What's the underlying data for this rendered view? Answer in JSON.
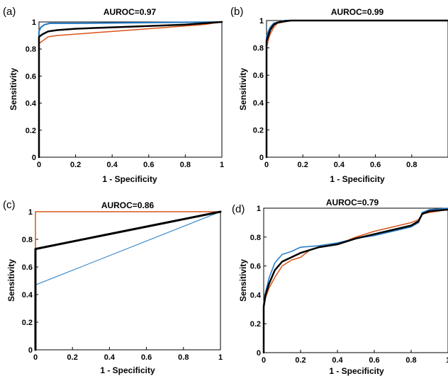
{
  "colors": {
    "blue": "#1f77c4",
    "orange": "#d9541a",
    "black": "#000000"
  },
  "chart_data": [
    {
      "label": "(a)",
      "type": "line",
      "title": "AUROC=0.97",
      "xlabel": "1 - Specificity",
      "ylabel": "Sensitivity",
      "xlim": [
        0,
        1
      ],
      "ylim": [
        0,
        1
      ],
      "xticks": [
        "0",
        "0.2",
        "0.4",
        "0.6",
        "0.8",
        "1"
      ],
      "yticks": [
        "0",
        "0.2",
        "0.4",
        "0.6",
        "0.8",
        "1"
      ],
      "grid": false,
      "series": [
        {
          "color": "orange",
          "width": 1.5,
          "points": [
            [
              0,
              0
            ],
            [
              0,
              0.84
            ],
            [
              0.02,
              0.86
            ],
            [
              0.05,
              0.89
            ],
            [
              0.1,
              0.9
            ],
            [
              0.3,
              0.92
            ],
            [
              0.5,
              0.94
            ],
            [
              0.7,
              0.96
            ],
            [
              0.9,
              0.98
            ],
            [
              1,
              1
            ]
          ]
        },
        {
          "color": "blue",
          "width": 2,
          "points": [
            [
              0,
              0
            ],
            [
              0,
              0.93
            ],
            [
              0.01,
              0.96
            ],
            [
              0.03,
              0.98
            ],
            [
              0.06,
              0.99
            ],
            [
              0.2,
              0.99
            ],
            [
              1,
              1
            ]
          ]
        },
        {
          "color": "black",
          "width": 2.5,
          "points": [
            [
              0,
              0
            ],
            [
              0,
              0.89
            ],
            [
              0.02,
              0.91
            ],
            [
              0.05,
              0.93
            ],
            [
              0.1,
              0.94
            ],
            [
              0.2,
              0.95
            ],
            [
              0.4,
              0.96
            ],
            [
              0.6,
              0.97
            ],
            [
              0.8,
              0.98
            ],
            [
              1,
              1
            ]
          ]
        }
      ]
    },
    {
      "label": "(b)",
      "type": "line",
      "title": "AUROC=0.99",
      "xlabel": "1 - Specificity",
      "ylabel": "Sensitivity",
      "xlim": [
        0,
        1
      ],
      "ylim": [
        0,
        1
      ],
      "xticks": [
        "0",
        "0.2",
        "0.4",
        "0.6",
        "0.8"
      ],
      "yticks": [
        "0",
        "0.2",
        "0.4",
        "0.6",
        "0.8",
        "1"
      ],
      "grid": false,
      "series": [
        {
          "color": "orange",
          "width": 1.5,
          "points": [
            [
              0,
              0
            ],
            [
              0,
              0.8
            ],
            [
              0.01,
              0.86
            ],
            [
              0.02,
              0.9
            ],
            [
              0.04,
              0.95
            ],
            [
              0.06,
              0.98
            ],
            [
              0.1,
              0.99
            ],
            [
              0.15,
              1
            ],
            [
              1,
              1
            ]
          ]
        },
        {
          "color": "blue",
          "width": 2,
          "points": [
            [
              0,
              0
            ],
            [
              0,
              0.88
            ],
            [
              0.01,
              0.92
            ],
            [
              0.02,
              0.95
            ],
            [
              0.04,
              0.98
            ],
            [
              0.07,
              0.99
            ],
            [
              0.1,
              1
            ],
            [
              1,
              1
            ]
          ]
        },
        {
          "color": "black",
          "width": 2.5,
          "points": [
            [
              0,
              0
            ],
            [
              0,
              0.85
            ],
            [
              0.01,
              0.89
            ],
            [
              0.02,
              0.93
            ],
            [
              0.04,
              0.97
            ],
            [
              0.06,
              0.985
            ],
            [
              0.1,
              0.995
            ],
            [
              0.13,
              1
            ],
            [
              1,
              1
            ]
          ]
        }
      ]
    },
    {
      "label": "(c)",
      "type": "line",
      "title": "AUROC=0.86",
      "xlabel": "1 - Specificity",
      "ylabel": "Sensitivity",
      "xlim": [
        0,
        1
      ],
      "ylim": [
        0,
        1
      ],
      "xticks": [
        "0",
        "0.2",
        "0.4",
        "0.6",
        "0.8",
        "1"
      ],
      "yticks": [
        "0",
        "0.2",
        "0.4",
        "0.6",
        "0.8",
        "1"
      ],
      "grid": false,
      "series": [
        {
          "color": "orange",
          "width": 1.5,
          "points": [
            [
              0,
              0
            ],
            [
              0,
              1
            ],
            [
              1,
              1
            ]
          ]
        },
        {
          "color": "blue",
          "width": 1,
          "points": [
            [
              0,
              0
            ],
            [
              0,
              0.47
            ],
            [
              1,
              1
            ]
          ]
        },
        {
          "color": "black",
          "width": 3,
          "points": [
            [
              0,
              0
            ],
            [
              0,
              0.73
            ],
            [
              1,
              1
            ]
          ]
        }
      ]
    },
    {
      "label": "(d)",
      "type": "line",
      "title": "AUROC=0.79",
      "xlabel": "1 - Specificity",
      "ylabel": "Sensitivity",
      "xlim": [
        0,
        1
      ],
      "ylim": [
        0,
        1
      ],
      "xticks": [
        "0",
        "0.2",
        "0.4",
        "0.6",
        "0.8",
        "1"
      ],
      "yticks": [
        "0",
        "0.2",
        "0.4",
        "0.6",
        "0.8",
        "1"
      ],
      "grid": false,
      "series": [
        {
          "color": "orange",
          "width": 1.5,
          "points": [
            [
              0,
              0
            ],
            [
              0,
              0.3
            ],
            [
              0.01,
              0.38
            ],
            [
              0.03,
              0.45
            ],
            [
              0.06,
              0.52
            ],
            [
              0.1,
              0.6
            ],
            [
              0.15,
              0.64
            ],
            [
              0.2,
              0.66
            ],
            [
              0.25,
              0.71
            ],
            [
              0.3,
              0.73
            ],
            [
              0.4,
              0.75
            ],
            [
              0.5,
              0.8
            ],
            [
              0.6,
              0.84
            ],
            [
              0.7,
              0.87
            ],
            [
              0.8,
              0.9
            ],
            [
              0.84,
              0.92
            ],
            [
              0.86,
              0.96
            ],
            [
              0.9,
              0.97
            ],
            [
              1,
              0.99
            ]
          ]
        },
        {
          "color": "blue",
          "width": 1.5,
          "points": [
            [
              0,
              0
            ],
            [
              0,
              0.34
            ],
            [
              0.01,
              0.42
            ],
            [
              0.03,
              0.52
            ],
            [
              0.06,
              0.62
            ],
            [
              0.1,
              0.68
            ],
            [
              0.15,
              0.7
            ],
            [
              0.2,
              0.73
            ],
            [
              0.3,
              0.74
            ],
            [
              0.4,
              0.76
            ],
            [
              0.5,
              0.79
            ],
            [
              0.6,
              0.81
            ],
            [
              0.7,
              0.84
            ],
            [
              0.8,
              0.87
            ],
            [
              0.84,
              0.9
            ],
            [
              0.86,
              0.97
            ],
            [
              0.9,
              0.99
            ],
            [
              1,
              1
            ]
          ]
        },
        {
          "color": "black",
          "width": 2.5,
          "points": [
            [
              0,
              0
            ],
            [
              0,
              0.32
            ],
            [
              0.01,
              0.4
            ],
            [
              0.03,
              0.48
            ],
            [
              0.06,
              0.57
            ],
            [
              0.1,
              0.63
            ],
            [
              0.15,
              0.66
            ],
            [
              0.2,
              0.69
            ],
            [
              0.3,
              0.73
            ],
            [
              0.4,
              0.75
            ],
            [
              0.5,
              0.79
            ],
            [
              0.6,
              0.82
            ],
            [
              0.7,
              0.85
            ],
            [
              0.8,
              0.88
            ],
            [
              0.84,
              0.91
            ],
            [
              0.86,
              0.96
            ],
            [
              0.9,
              0.98
            ],
            [
              1,
              0.99
            ]
          ]
        }
      ]
    }
  ]
}
